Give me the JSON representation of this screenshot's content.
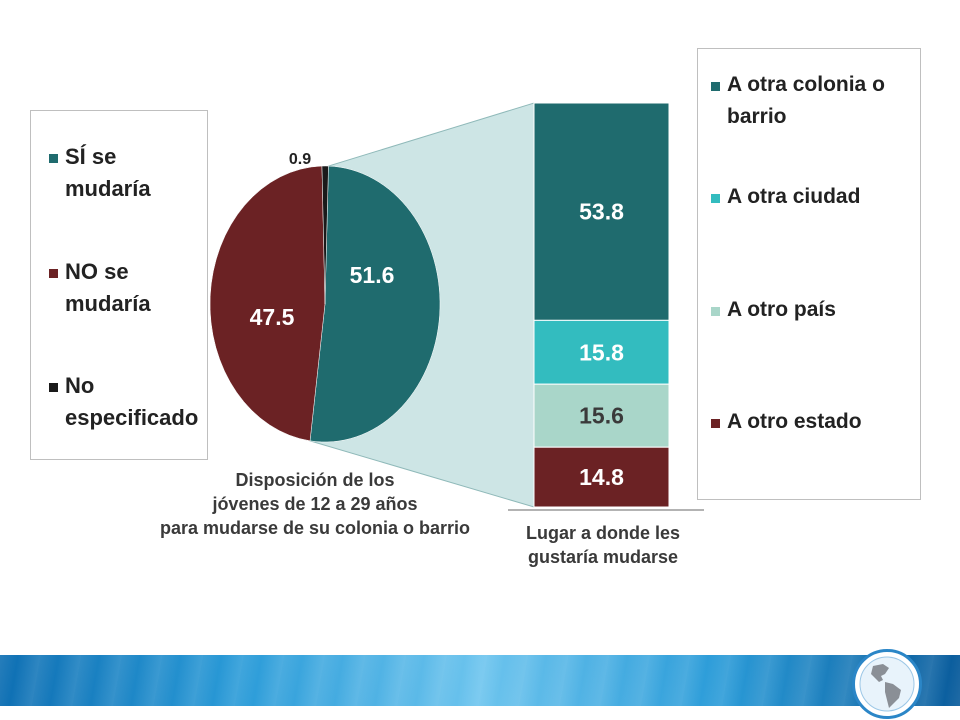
{
  "colors": {
    "si": "#1f6b6e",
    "no": "#6b2224",
    "noesp": "#1a1a1a",
    "colonia": "#1f6b6e",
    "ciudad": "#33bcbf",
    "pais": "#a9d6c9",
    "estado": "#6b2224",
    "connector": "#cde5e5"
  },
  "left_legend": {
    "items": [
      {
        "label_line1": "SÍ se",
        "label_line2": "mudaría",
        "color": "#1f6b6e"
      },
      {
        "label_line1": "NO se",
        "label_line2": "mudaría",
        "color": "#6b2224"
      },
      {
        "label_line1": "No",
        "label_line2": "especificado",
        "color": "#1a1a1a"
      }
    ]
  },
  "right_legend": {
    "items": [
      {
        "label_line1": "A otra colonia o",
        "label_line2": "barrio",
        "color": "#1f6b6e"
      },
      {
        "label_line1": "A otra ciudad",
        "label_line2": "",
        "color": "#33bcbf"
      },
      {
        "label_line1": "A otro país",
        "label_line2": "",
        "color": "#a9d6c9"
      },
      {
        "label_line1": "A otro estado",
        "label_line2": "",
        "color": "#6b2224"
      }
    ]
  },
  "captions": {
    "pie_line1": "Disposición de los",
    "pie_line2": "jóvenes de 12 a 29 años",
    "pie_line3": "para mudarse de su colonia o barrio",
    "bar_line1": "Lugar a donde les",
    "bar_line2": "gustaría mudarse"
  },
  "chart_data": [
    {
      "type": "pie",
      "title": "Disposición de los jóvenes de 12 a 29 años para mudarse de su colonia o barrio",
      "categories": [
        "SÍ se mudaría",
        "NO se mudaría",
        "No especificado"
      ],
      "values": [
        51.6,
        47.5,
        0.9
      ],
      "labels": [
        "51.6",
        "47.5",
        "0.9"
      ]
    },
    {
      "type": "bar",
      "stacked": true,
      "title": "Lugar a donde les gustaría mudarse",
      "categories": [
        "A otra colonia o barrio",
        "A otra ciudad",
        "A otro país",
        "A otro estado"
      ],
      "values": [
        53.8,
        15.8,
        15.6,
        14.8
      ],
      "labels": [
        "53.8",
        "15.8",
        "15.6",
        "14.8"
      ]
    }
  ]
}
